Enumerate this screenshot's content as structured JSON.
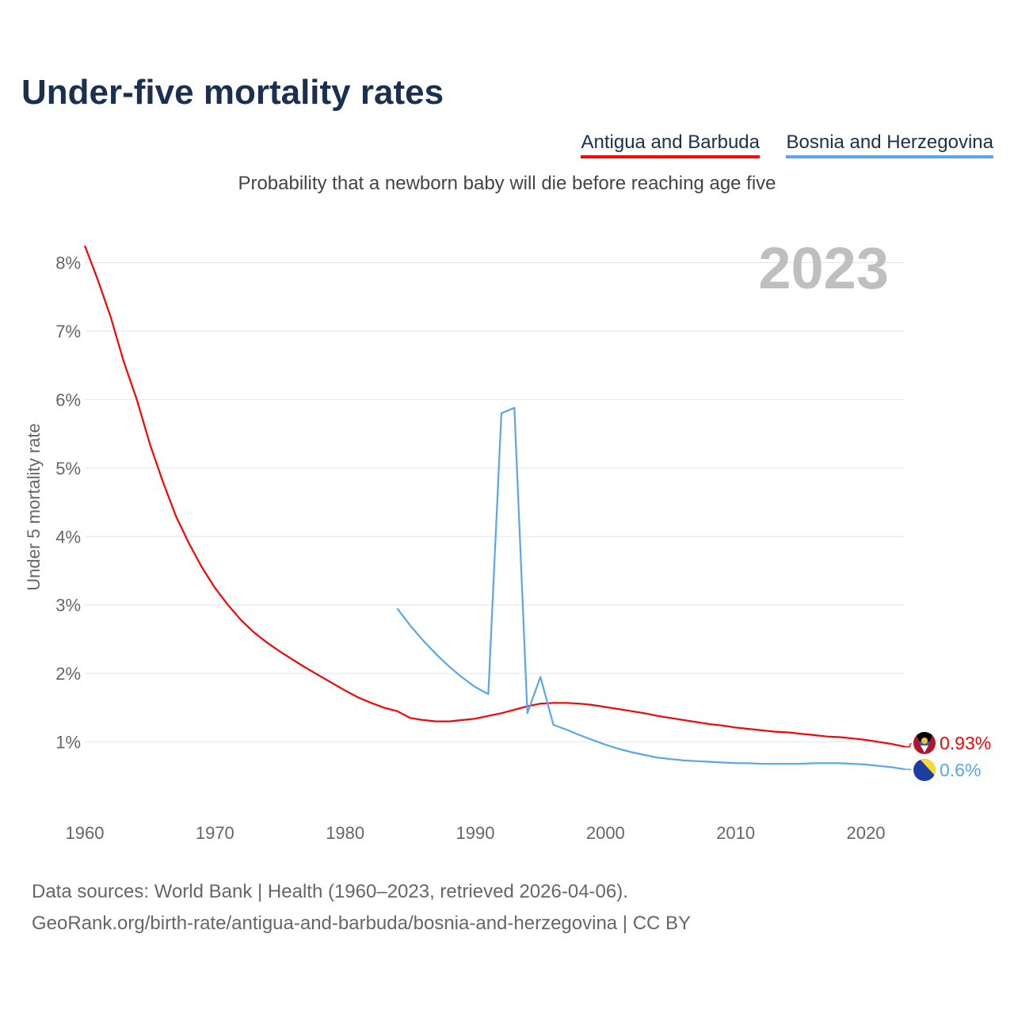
{
  "title": "Under-five mortality rates",
  "subtitle": "Probability that a newborn baby will die before reaching age five",
  "year_label": "2023",
  "footer": {
    "line1": "Data sources: World Bank | Health (1960–2023, retrieved 2026-04-06).",
    "line2": "GeoRank.org/birth-rate/antigua-and-barbuda/bosnia-and-herzegovina | CC BY"
  },
  "chart_data": {
    "type": "line",
    "title": "Under-five mortality rates",
    "xlabel": "",
    "ylabel": "Under 5 mortality rate",
    "xlim": [
      1960,
      2023
    ],
    "ylim": [
      0,
      8.5
    ],
    "yticks": [
      1,
      2,
      3,
      4,
      5,
      6,
      7,
      8
    ],
    "ytick_labels": [
      "1%",
      "2%",
      "3%",
      "4%",
      "5%",
      "6%",
      "7%",
      "8%"
    ],
    "xticks": [
      1960,
      1970,
      1980,
      1990,
      2000,
      2010,
      2020
    ],
    "xtick_labels": [
      "1960",
      "1970",
      "1980",
      "1990",
      "2000",
      "2010",
      "2020"
    ],
    "grid": true,
    "legend": "top-right",
    "series": [
      {
        "name": "Antigua and Barbuda",
        "color": "#ff0000",
        "end_label": "0.93%",
        "flag": "antigua-flag-icon",
        "start_year": 1960,
        "values": [
          8.25,
          7.75,
          7.2,
          6.55,
          6.0,
          5.35,
          4.8,
          4.3,
          3.9,
          3.55,
          3.25,
          3.0,
          2.78,
          2.6,
          2.45,
          2.32,
          2.2,
          2.08,
          1.97,
          1.86,
          1.75,
          1.65,
          1.57,
          1.5,
          1.45,
          1.35,
          1.32,
          1.3,
          1.3,
          1.32,
          1.34,
          1.38,
          1.42,
          1.47,
          1.52,
          1.56,
          1.57,
          1.57,
          1.56,
          1.54,
          1.51,
          1.48,
          1.45,
          1.42,
          1.38,
          1.35,
          1.32,
          1.29,
          1.26,
          1.24,
          1.21,
          1.19,
          1.17,
          1.15,
          1.14,
          1.12,
          1.1,
          1.08,
          1.07,
          1.05,
          1.03,
          1.0,
          0.97,
          0.93
        ]
      },
      {
        "name": "Bosnia and Herzegovina",
        "color": "#5aa5ec",
        "end_label": "0.6%",
        "flag": "bosnia-flag-icon",
        "start_year": 1984,
        "values": [
          2.95,
          2.7,
          2.48,
          2.28,
          2.1,
          1.94,
          1.8,
          1.7,
          5.8,
          5.88,
          1.42,
          1.95,
          1.25,
          1.18,
          1.1,
          1.03,
          0.96,
          0.9,
          0.85,
          0.81,
          0.77,
          0.75,
          0.73,
          0.72,
          0.71,
          0.7,
          0.69,
          0.69,
          0.68,
          0.68,
          0.68,
          0.68,
          0.69,
          0.69,
          0.69,
          0.68,
          0.67,
          0.65,
          0.63,
          0.6
        ]
      }
    ]
  }
}
